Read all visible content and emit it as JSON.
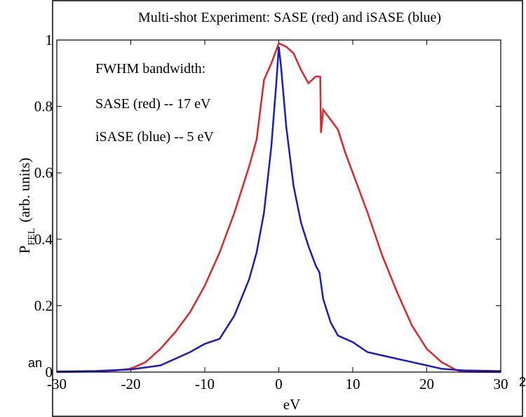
{
  "chart_data": {
    "type": "line",
    "title": "Multi-shot Experiment: SASE (red) and iSASE (blue)",
    "xlabel": "eV",
    "ylabel": "P",
    "ylabel_subscript": "FEL",
    "ylabel_suffix": "(arb. units)",
    "annotations": [
      "FWHM bandwidth:",
      "SASE (red) -- 17 eV",
      "iSASE (blue) -- 5 eV"
    ],
    "background_fragments": [
      "an",
      "2"
    ],
    "xlim": [
      -30,
      30
    ],
    "xticks": [
      -30,
      -20,
      -10,
      0,
      10,
      20,
      30
    ],
    "ylim": [
      0,
      1
    ],
    "yticks": [
      0,
      0.2,
      0.4,
      0.6,
      0.8,
      1
    ],
    "series": [
      {
        "name": "SASE",
        "color": "#e3242b",
        "x": [
          -30,
          -25,
          -22,
          -20,
          -18,
          -16,
          -14,
          -12,
          -10,
          -8,
          -6,
          -4,
          -3,
          -2,
          -1,
          0,
          1,
          2,
          3,
          4,
          5,
          5.6,
          5.7,
          6,
          7,
          8,
          9,
          10,
          12,
          14,
          16,
          18,
          20,
          22,
          24,
          25,
          30
        ],
        "values": [
          0,
          0.002,
          0.005,
          0.01,
          0.03,
          0.07,
          0.12,
          0.18,
          0.26,
          0.36,
          0.48,
          0.62,
          0.7,
          0.88,
          0.93,
          0.99,
          0.98,
          0.96,
          0.91,
          0.87,
          0.89,
          0.89,
          0.72,
          0.79,
          0.76,
          0.73,
          0.66,
          0.6,
          0.48,
          0.35,
          0.24,
          0.14,
          0.07,
          0.03,
          0.006,
          0.001,
          0
        ]
      },
      {
        "name": "iSASE",
        "color": "#1c1cc0",
        "x": [
          -30,
          -25,
          -20,
          -16,
          -14,
          -12,
          -10,
          -8,
          -6,
          -4,
          -3,
          -2,
          -1,
          -0.3,
          0,
          0.3,
          1,
          2,
          3,
          4,
          5,
          5.5,
          6,
          7,
          8,
          9,
          10,
          12,
          14,
          16,
          18,
          20,
          22,
          25,
          30
        ],
        "values": [
          0.002,
          0.003,
          0.008,
          0.02,
          0.04,
          0.06,
          0.085,
          0.1,
          0.17,
          0.28,
          0.36,
          0.48,
          0.68,
          0.88,
          0.98,
          0.92,
          0.74,
          0.56,
          0.45,
          0.38,
          0.32,
          0.3,
          0.22,
          0.15,
          0.11,
          0.1,
          0.09,
          0.06,
          0.05,
          0.04,
          0.03,
          0.02,
          0.01,
          0.005,
          0.003
        ]
      }
    ]
  }
}
